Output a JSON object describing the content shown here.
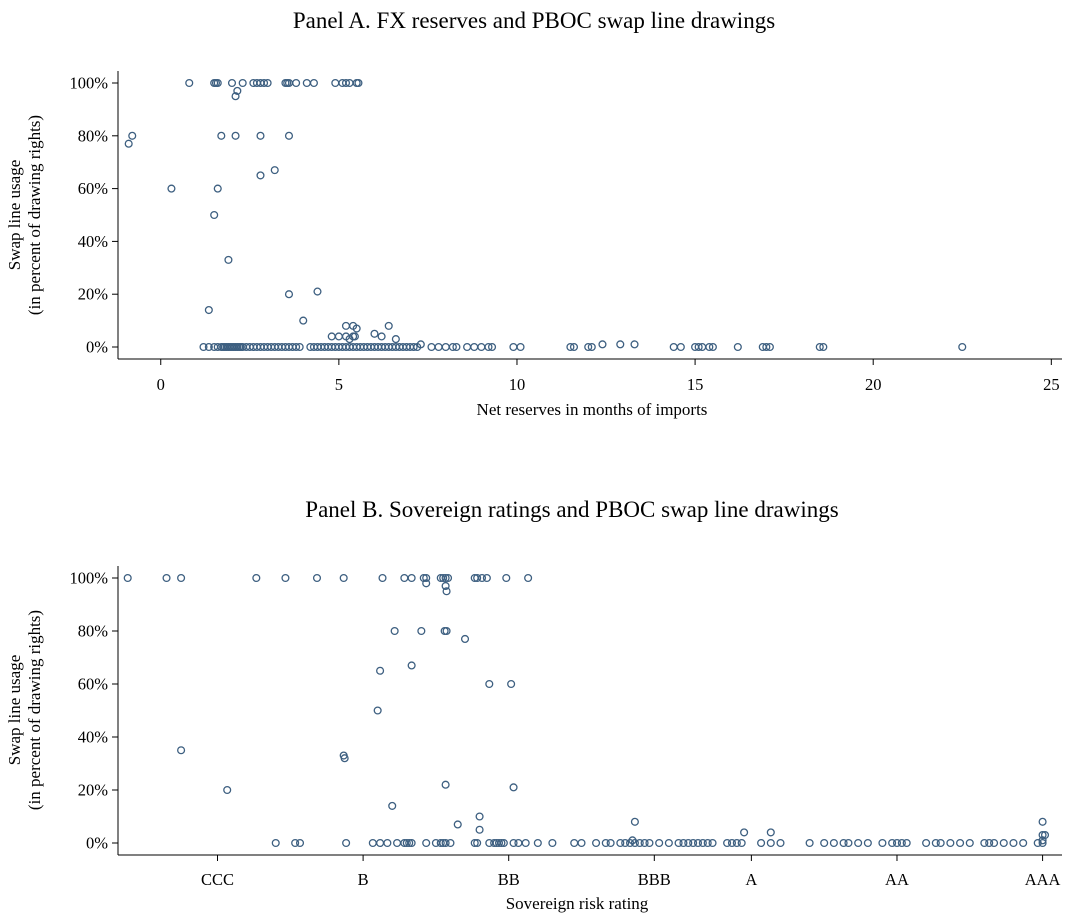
{
  "chart_data": [
    {
      "type": "scatter",
      "title": "Panel A. FX reserves and PBOC swap line drawings",
      "xlabel": "Net reserves in months of imports",
      "ylabel": [
        "Swap line usage",
        "(in percent of drawing rights)"
      ],
      "xlim": [
        -1.2,
        25.3
      ],
      "ylim": [
        0,
        100
      ],
      "xticks": [
        0,
        5,
        10,
        15,
        20,
        25
      ],
      "xtick_labels": [
        "0",
        "5",
        "10",
        "15",
        "20",
        "25"
      ],
      "yticks": [
        0,
        20,
        40,
        60,
        80,
        100
      ],
      "ytick_labels": [
        "0%",
        "20%",
        "40%",
        "60%",
        "80%",
        "100%"
      ],
      "grid": false,
      "marker_color": "#3d5f80",
      "points": [
        [
          0.8,
          100
        ],
        [
          1.5,
          100
        ],
        [
          1.55,
          100
        ],
        [
          1.6,
          100
        ],
        [
          2.0,
          100
        ],
        [
          2.3,
          100
        ],
        [
          2.6,
          100
        ],
        [
          2.7,
          100
        ],
        [
          2.8,
          100
        ],
        [
          2.9,
          100
        ],
        [
          3.0,
          100
        ],
        [
          3.5,
          100
        ],
        [
          3.55,
          100
        ],
        [
          3.6,
          100
        ],
        [
          3.8,
          100
        ],
        [
          4.1,
          100
        ],
        [
          4.3,
          100
        ],
        [
          4.9,
          100
        ],
        [
          5.1,
          100
        ],
        [
          5.2,
          100
        ],
        [
          5.3,
          100
        ],
        [
          5.5,
          100
        ],
        [
          5.55,
          100
        ],
        [
          2.15,
          97
        ],
        [
          2.1,
          95
        ],
        [
          -0.8,
          80
        ],
        [
          1.7,
          80
        ],
        [
          2.1,
          80
        ],
        [
          2.8,
          80
        ],
        [
          3.6,
          80
        ],
        [
          -0.9,
          77
        ],
        [
          3.2,
          67
        ],
        [
          2.8,
          65
        ],
        [
          0.3,
          60
        ],
        [
          1.6,
          60
        ],
        [
          1.5,
          50
        ],
        [
          1.9,
          33
        ],
        [
          4.4,
          21
        ],
        [
          3.6,
          20
        ],
        [
          1.35,
          14
        ],
        [
          4.0,
          10
        ],
        [
          5.2,
          8
        ],
        [
          5.4,
          8
        ],
        [
          6.4,
          8
        ],
        [
          5.5,
          7
        ],
        [
          6.0,
          5
        ],
        [
          6.2,
          4
        ],
        [
          5.0,
          4
        ],
        [
          5.2,
          4
        ],
        [
          5.4,
          4
        ],
        [
          5.45,
          4
        ],
        [
          4.8,
          4
        ],
        [
          5.3,
          3
        ],
        [
          6.6,
          3
        ],
        [
          7.3,
          1
        ],
        [
          12.4,
          1
        ],
        [
          12.9,
          1
        ],
        [
          13.3,
          1
        ],
        [
          1.2,
          0
        ],
        [
          1.35,
          0
        ],
        [
          1.5,
          0
        ],
        [
          1.6,
          0
        ],
        [
          1.7,
          0
        ],
        [
          1.75,
          0
        ],
        [
          1.8,
          0
        ],
        [
          1.85,
          0
        ],
        [
          1.9,
          0
        ],
        [
          1.95,
          0
        ],
        [
          2.0,
          0
        ],
        [
          2.05,
          0
        ],
        [
          2.1,
          0
        ],
        [
          2.15,
          0
        ],
        [
          2.2,
          0
        ],
        [
          2.25,
          0
        ],
        [
          2.3,
          0
        ],
        [
          2.4,
          0
        ],
        [
          2.5,
          0
        ],
        [
          2.6,
          0
        ],
        [
          2.7,
          0
        ],
        [
          2.8,
          0
        ],
        [
          2.9,
          0
        ],
        [
          3.0,
          0
        ],
        [
          3.1,
          0
        ],
        [
          3.2,
          0
        ],
        [
          3.3,
          0
        ],
        [
          3.4,
          0
        ],
        [
          3.5,
          0
        ],
        [
          3.6,
          0
        ],
        [
          3.7,
          0
        ],
        [
          3.8,
          0
        ],
        [
          3.9,
          0
        ],
        [
          4.2,
          0
        ],
        [
          4.3,
          0
        ],
        [
          4.4,
          0
        ],
        [
          4.5,
          0
        ],
        [
          4.6,
          0
        ],
        [
          4.7,
          0
        ],
        [
          4.8,
          0
        ],
        [
          4.9,
          0
        ],
        [
          5.0,
          0
        ],
        [
          5.1,
          0
        ],
        [
          5.2,
          0
        ],
        [
          5.3,
          0
        ],
        [
          5.4,
          0
        ],
        [
          5.5,
          0
        ],
        [
          5.6,
          0
        ],
        [
          5.7,
          0
        ],
        [
          5.8,
          0
        ],
        [
          5.9,
          0
        ],
        [
          6.0,
          0
        ],
        [
          6.1,
          0
        ],
        [
          6.2,
          0
        ],
        [
          6.3,
          0
        ],
        [
          6.4,
          0
        ],
        [
          6.5,
          0
        ],
        [
          6.6,
          0
        ],
        [
          6.7,
          0
        ],
        [
          6.8,
          0
        ],
        [
          6.9,
          0
        ],
        [
          7.0,
          0
        ],
        [
          7.1,
          0
        ],
        [
          7.2,
          0
        ],
        [
          7.6,
          0
        ],
        [
          7.8,
          0
        ],
        [
          8.0,
          0
        ],
        [
          8.2,
          0
        ],
        [
          8.3,
          0
        ],
        [
          8.6,
          0
        ],
        [
          8.8,
          0
        ],
        [
          9.0,
          0
        ],
        [
          9.2,
          0
        ],
        [
          9.3,
          0
        ],
        [
          9.9,
          0
        ],
        [
          10.1,
          0
        ],
        [
          11.5,
          0
        ],
        [
          11.6,
          0
        ],
        [
          12.0,
          0
        ],
        [
          12.1,
          0
        ],
        [
          14.4,
          0
        ],
        [
          14.6,
          0
        ],
        [
          15.0,
          0
        ],
        [
          15.1,
          0
        ],
        [
          15.2,
          0
        ],
        [
          15.4,
          0
        ],
        [
          15.5,
          0
        ],
        [
          16.2,
          0
        ],
        [
          16.9,
          0
        ],
        [
          17.0,
          0
        ],
        [
          17.1,
          0
        ],
        [
          18.5,
          0
        ],
        [
          18.6,
          0
        ],
        [
          22.5,
          0
        ]
      ]
    },
    {
      "type": "scatter",
      "title": "Panel B. Sovereign ratings and PBOC swap line drawings",
      "xlabel": "Sovereign risk rating",
      "ylabel": [
        "Swap line usage",
        "(in percent of drawing rights)"
      ],
      "xlim": [
        -2.05,
        17.4
      ],
      "ylim": [
        0,
        100
      ],
      "xticks": [
        0,
        3,
        6,
        9,
        11,
        14,
        17
      ],
      "xtick_labels": [
        "CCC",
        "B",
        "BB",
        "BBB",
        "A",
        "AA",
        "AAA"
      ],
      "yticks": [
        0,
        20,
        40,
        60,
        80,
        100
      ],
      "ytick_labels": [
        "0%",
        "20%",
        "40%",
        "60%",
        "80%",
        "100%"
      ],
      "grid": false,
      "marker_color": "#3d5f80",
      "points": [
        [
          -1.85,
          100
        ],
        [
          -1.05,
          100
        ],
        [
          -0.75,
          100
        ],
        [
          0.8,
          100
        ],
        [
          1.4,
          100
        ],
        [
          2.05,
          100
        ],
        [
          2.6,
          100
        ],
        [
          3.4,
          100
        ],
        [
          3.85,
          100
        ],
        [
          4.0,
          100
        ],
        [
          4.25,
          100
        ],
        [
          4.3,
          100
        ],
        [
          4.6,
          100
        ],
        [
          4.65,
          100
        ],
        [
          4.7,
          100
        ],
        [
          4.75,
          100
        ],
        [
          5.3,
          100
        ],
        [
          5.35,
          100
        ],
        [
          5.45,
          100
        ],
        [
          6.4,
          100
        ],
        [
          5.95,
          100
        ],
        [
          5.55,
          100
        ],
        [
          4.3,
          98
        ],
        [
          4.7,
          97
        ],
        [
          4.72,
          95
        ],
        [
          3.65,
          80
        ],
        [
          4.2,
          80
        ],
        [
          4.68,
          80
        ],
        [
          4.72,
          80
        ],
        [
          5.1,
          77
        ],
        [
          3.35,
          65
        ],
        [
          4.0,
          67
        ],
        [
          5.6,
          60
        ],
        [
          6.05,
          60
        ],
        [
          3.3,
          50
        ],
        [
          -0.75,
          35
        ],
        [
          2.6,
          33
        ],
        [
          2.62,
          32
        ],
        [
          0.2,
          20
        ],
        [
          4.7,
          22
        ],
        [
          6.1,
          21
        ],
        [
          3.6,
          14
        ],
        [
          5.4,
          10
        ],
        [
          4.95,
          7
        ],
        [
          5.4,
          5
        ],
        [
          8.6,
          8
        ],
        [
          8.55,
          1
        ],
        [
          10.85,
          4
        ],
        [
          11.4,
          4
        ],
        [
          17.0,
          8
        ],
        [
          17.0,
          3
        ],
        [
          17.05,
          3
        ],
        [
          17.0,
          1
        ],
        [
          1.2,
          0
        ],
        [
          1.6,
          0
        ],
        [
          1.7,
          0
        ],
        [
          2.65,
          0
        ],
        [
          3.2,
          0
        ],
        [
          3.35,
          0
        ],
        [
          3.5,
          0
        ],
        [
          3.7,
          0
        ],
        [
          3.85,
          0
        ],
        [
          3.9,
          0
        ],
        [
          3.95,
          0
        ],
        [
          4.0,
          0
        ],
        [
          4.3,
          0
        ],
        [
          4.5,
          0
        ],
        [
          4.6,
          0
        ],
        [
          4.65,
          0
        ],
        [
          4.7,
          0
        ],
        [
          4.8,
          0
        ],
        [
          5.3,
          0
        ],
        [
          5.35,
          0
        ],
        [
          5.6,
          0
        ],
        [
          5.7,
          0
        ],
        [
          5.75,
          0
        ],
        [
          5.8,
          0
        ],
        [
          5.85,
          0
        ],
        [
          5.9,
          0
        ],
        [
          6.1,
          0
        ],
        [
          6.2,
          0
        ],
        [
          6.35,
          0
        ],
        [
          6.6,
          0
        ],
        [
          6.9,
          0
        ],
        [
          7.35,
          0
        ],
        [
          7.5,
          0
        ],
        [
          7.8,
          0
        ],
        [
          8.0,
          0
        ],
        [
          8.1,
          0
        ],
        [
          8.3,
          0
        ],
        [
          8.4,
          0
        ],
        [
          8.5,
          0
        ],
        [
          8.6,
          0
        ],
        [
          8.7,
          0
        ],
        [
          8.8,
          0
        ],
        [
          8.9,
          0
        ],
        [
          9.1,
          0
        ],
        [
          9.3,
          0
        ],
        [
          9.5,
          0
        ],
        [
          9.6,
          0
        ],
        [
          9.7,
          0
        ],
        [
          9.8,
          0
        ],
        [
          9.9,
          0
        ],
        [
          10.0,
          0
        ],
        [
          10.1,
          0
        ],
        [
          10.2,
          0
        ],
        [
          10.5,
          0
        ],
        [
          10.6,
          0
        ],
        [
          10.7,
          0
        ],
        [
          10.8,
          0
        ],
        [
          11.2,
          0
        ],
        [
          11.4,
          0
        ],
        [
          11.6,
          0
        ],
        [
          12.2,
          0
        ],
        [
          12.5,
          0
        ],
        [
          12.7,
          0
        ],
        [
          12.9,
          0
        ],
        [
          13.0,
          0
        ],
        [
          13.2,
          0
        ],
        [
          13.4,
          0
        ],
        [
          13.7,
          0
        ],
        [
          13.9,
          0
        ],
        [
          14.0,
          0
        ],
        [
          14.1,
          0
        ],
        [
          14.2,
          0
        ],
        [
          14.6,
          0
        ],
        [
          14.8,
          0
        ],
        [
          14.9,
          0
        ],
        [
          15.1,
          0
        ],
        [
          15.3,
          0
        ],
        [
          15.5,
          0
        ],
        [
          15.8,
          0
        ],
        [
          15.9,
          0
        ],
        [
          16.0,
          0
        ],
        [
          16.2,
          0
        ],
        [
          16.4,
          0
        ],
        [
          16.6,
          0
        ],
        [
          16.9,
          0
        ],
        [
          17.0,
          0
        ]
      ]
    }
  ]
}
